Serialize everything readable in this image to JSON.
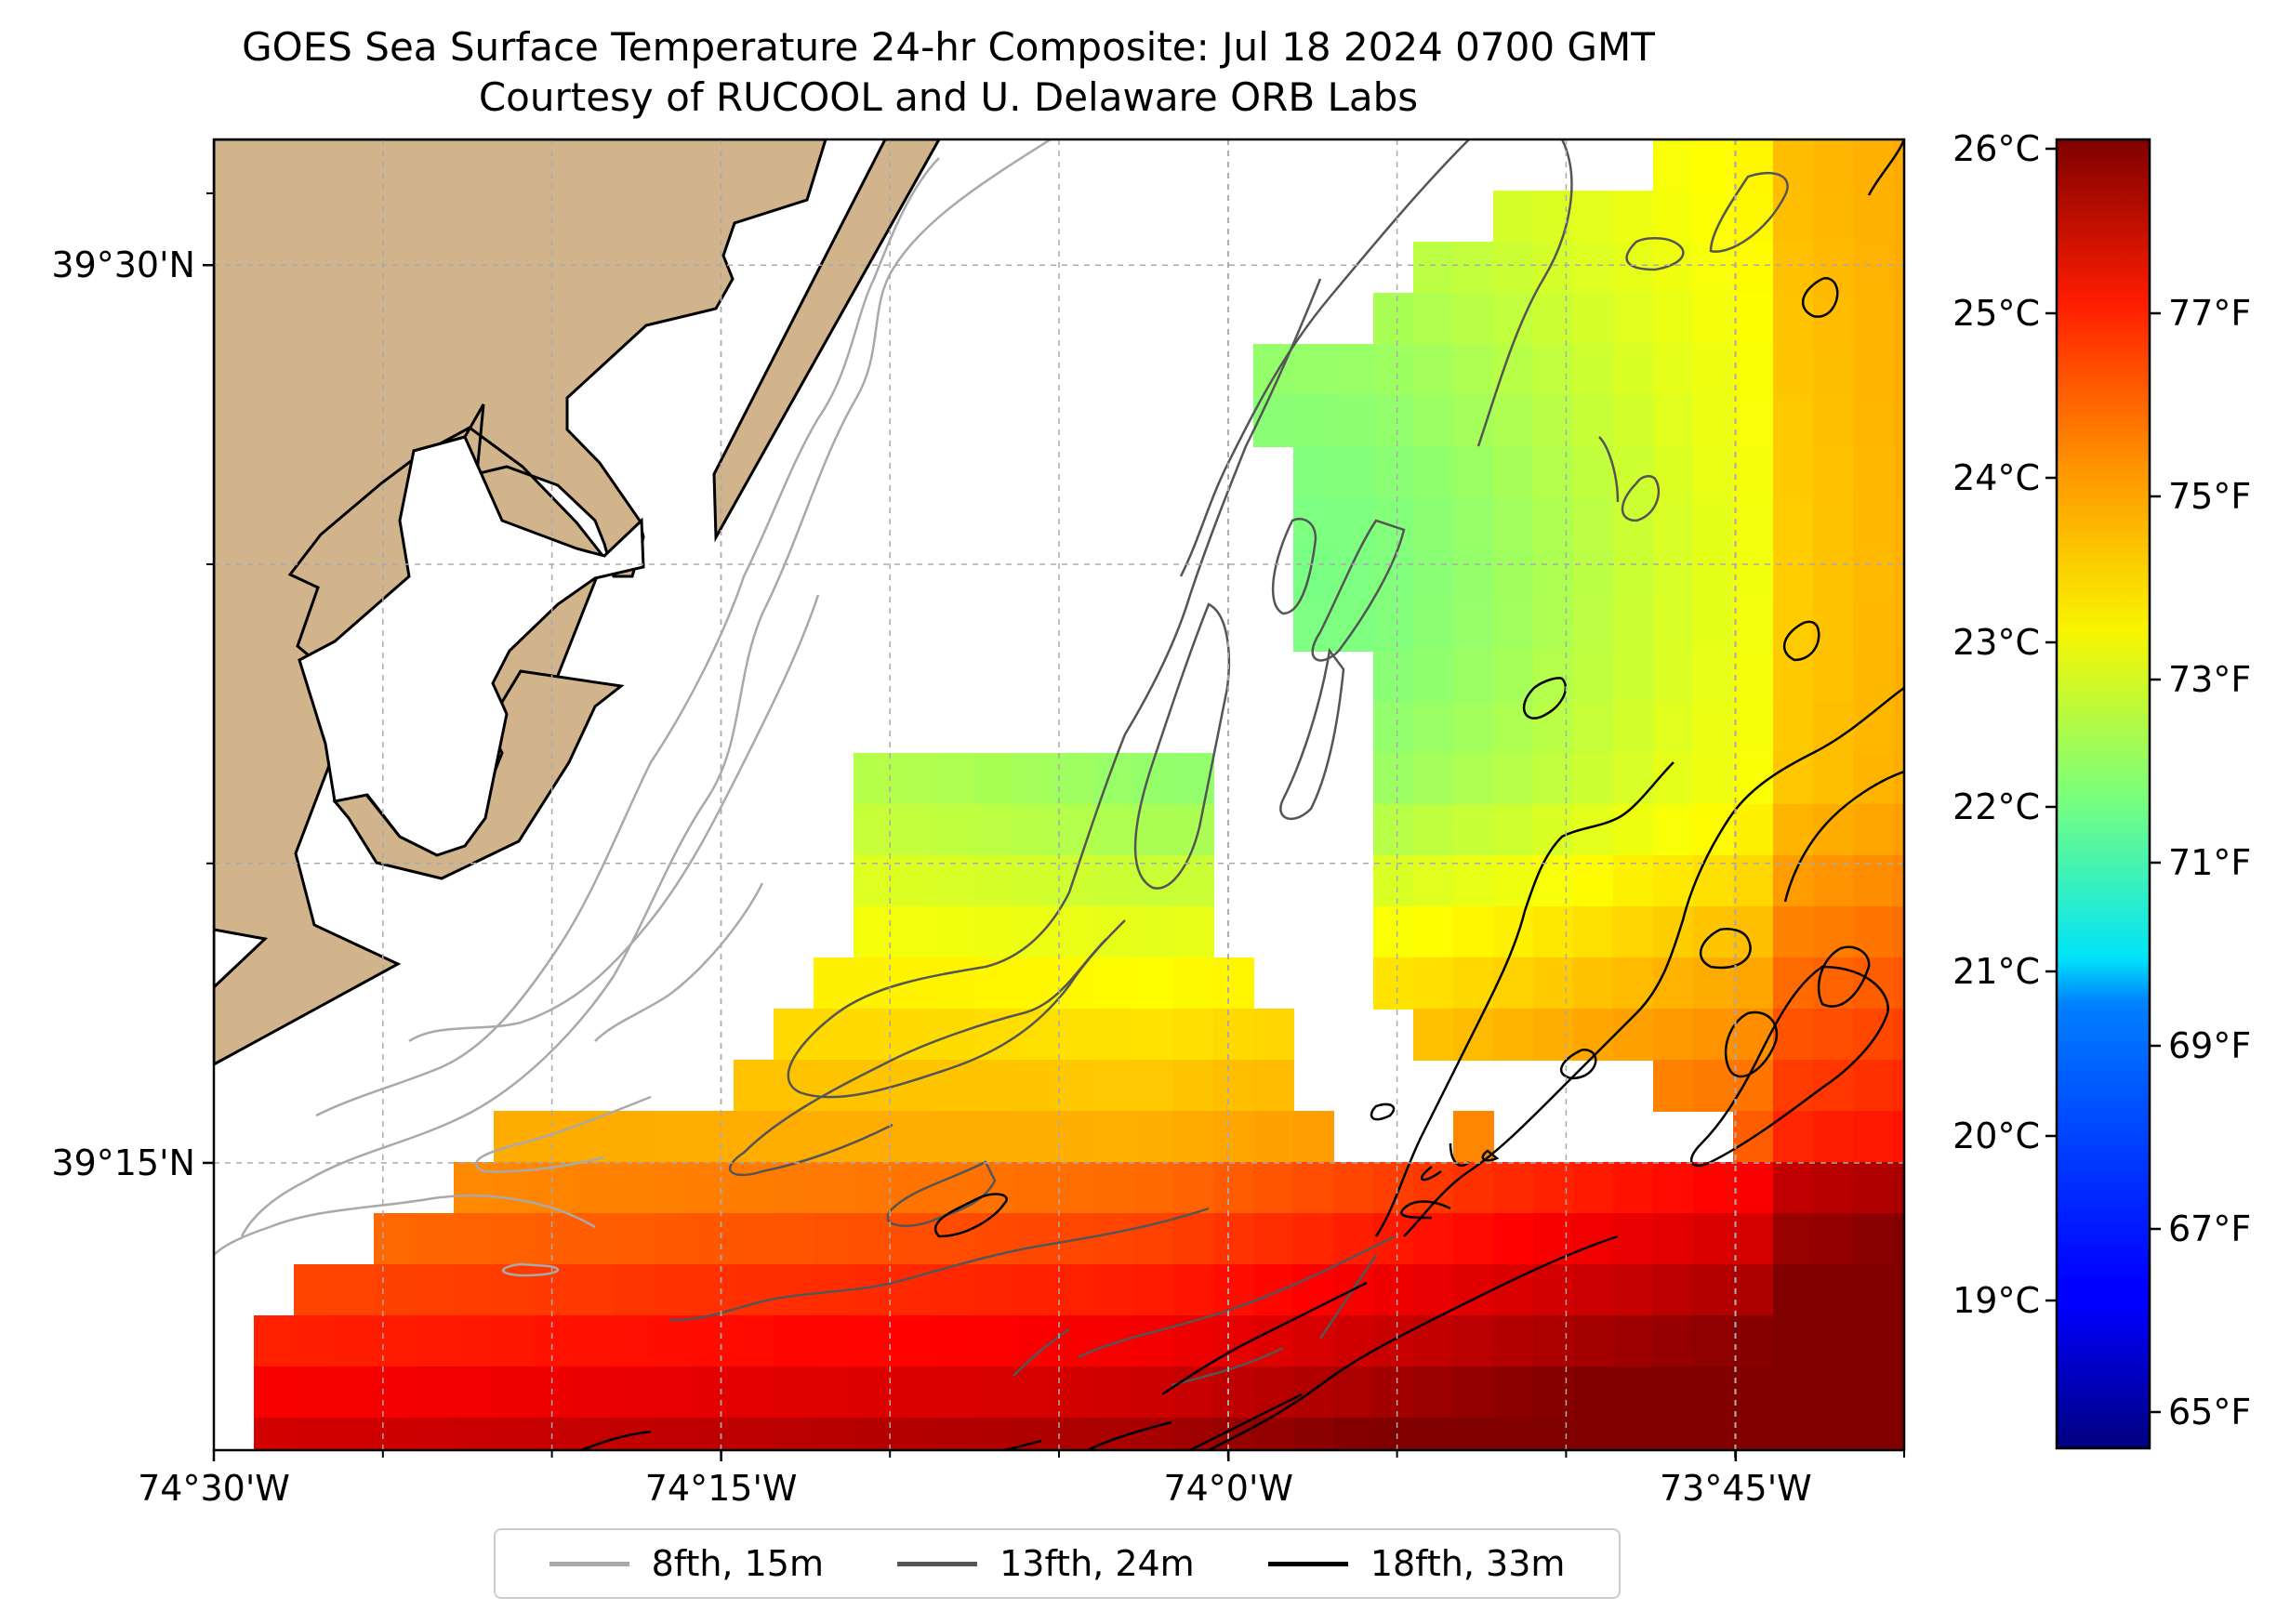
{
  "title": {
    "line1": "GOES Sea Surface Temperature 24-hr Composite: Jul 18 2024 0700 GMT",
    "line2": "Courtesy of RUCOOL and U. Delaware ORB Labs"
  },
  "map": {
    "extent": {
      "lon_min": -74.5,
      "lon_max": -73.667,
      "lat_min": 39.17,
      "lat_max": 39.535
    },
    "land_color": "#d2b48c",
    "x_ticks": [
      {
        "lon": -74.5,
        "label": "74°30'W"
      },
      {
        "lon": -74.25,
        "label": "74°15'W"
      },
      {
        "lon": -74.0,
        "label": "74°0'W"
      },
      {
        "lon": -73.75,
        "label": "73°45'W"
      }
    ],
    "y_ticks": [
      {
        "lat": 39.5,
        "label": "39°30'N"
      },
      {
        "lat": 39.25,
        "label": "39°15'N"
      }
    ],
    "grid": true
  },
  "colorbar": {
    "colormap": "jet",
    "celsius_ticks": [
      "26°C",
      "25°C",
      "24°C",
      "23°C",
      "22°C",
      "21°C",
      "20°C",
      "19°C"
    ],
    "fahrenheit_ticks": [
      "77°F",
      "75°F",
      "73°F",
      "71°F",
      "69°F",
      "67°F",
      "65°F"
    ]
  },
  "legend": {
    "items": [
      {
        "label": "8fth, 15m",
        "color": "#a9a9a9"
      },
      {
        "label": "13fth, 24m",
        "color": "#555555"
      },
      {
        "label": "18fth, 33m",
        "color": "#000000"
      }
    ]
  }
}
